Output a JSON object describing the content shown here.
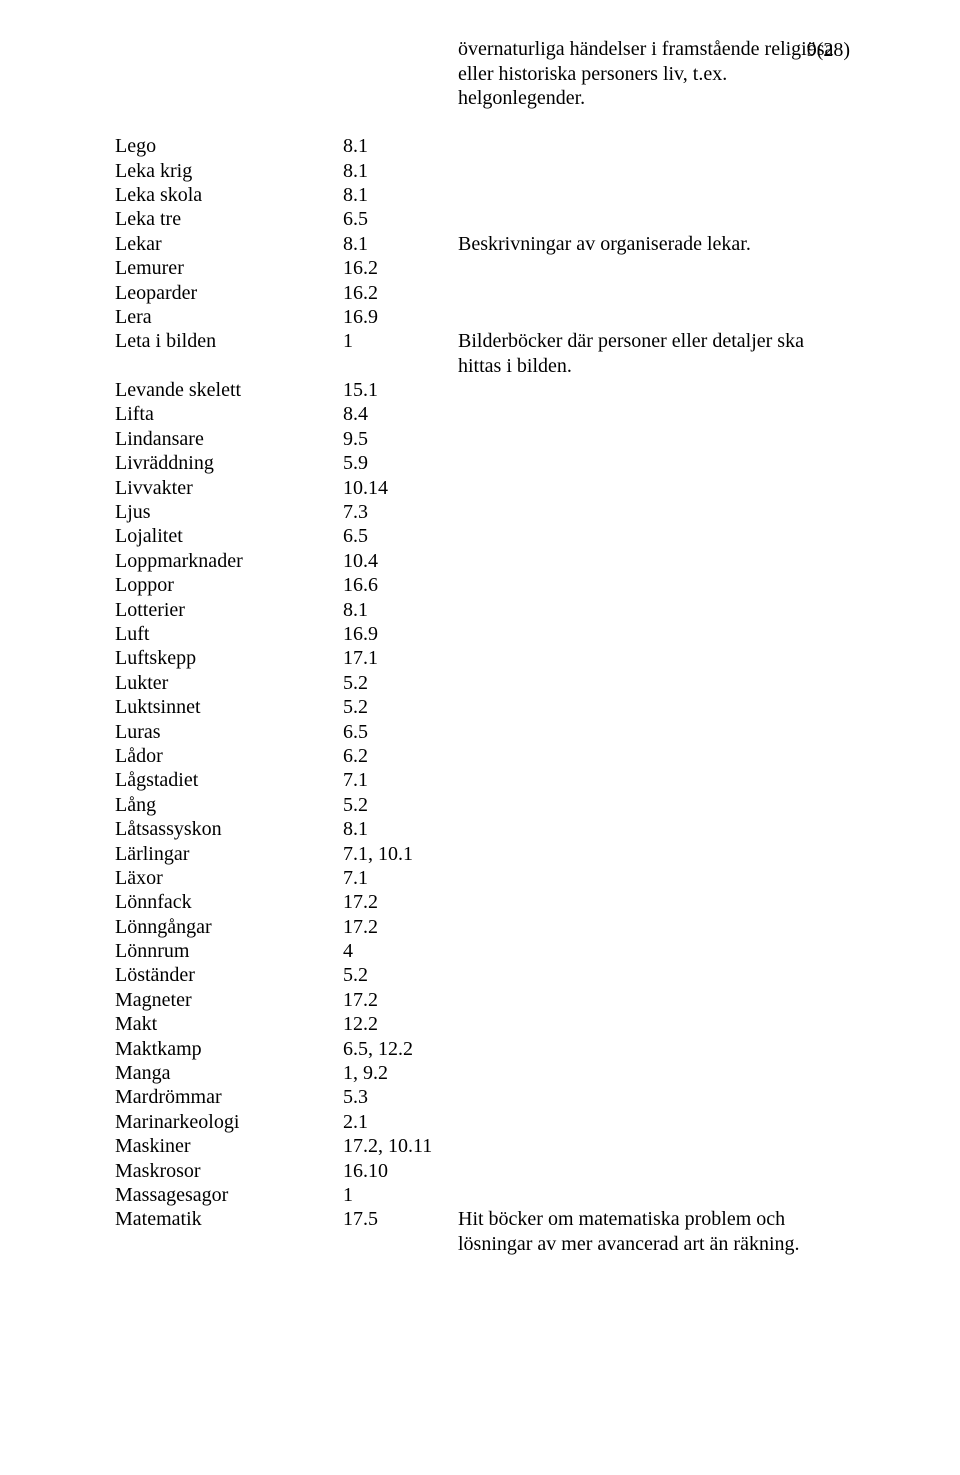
{
  "page_number": "9(28)",
  "first_desc": "övernaturliga händelser i framstående religiösa eller historiska personers liv, t.ex. helgonlegender.",
  "rows": [
    {
      "term": "Lego",
      "code": "8.1",
      "desc": ""
    },
    {
      "term": "Leka krig",
      "code": "8.1",
      "desc": ""
    },
    {
      "term": "Leka skola",
      "code": "8.1",
      "desc": ""
    },
    {
      "term": "Leka tre",
      "code": "6.5",
      "desc": ""
    },
    {
      "term": "Lekar",
      "code": "8.1",
      "desc": "Beskrivningar av organiserade lekar."
    },
    {
      "term": "Lemurer",
      "code": "16.2",
      "desc": ""
    },
    {
      "term": "Leoparder",
      "code": "16.2",
      "desc": ""
    },
    {
      "term": "Lera",
      "code": "16.9",
      "desc": ""
    },
    {
      "term": "Leta i bilden",
      "code": "1",
      "desc": "Bilderböcker där personer eller detaljer ska hittas i bilden."
    },
    {
      "term": "Levande skelett",
      "code": "15.1",
      "desc": ""
    },
    {
      "term": "Lifta",
      "code": "8.4",
      "desc": ""
    },
    {
      "term": "Lindansare",
      "code": "9.5",
      "desc": ""
    },
    {
      "term": "Livräddning",
      "code": "5.9",
      "desc": ""
    },
    {
      "term": "Livvakter",
      "code": "10.14",
      "desc": ""
    },
    {
      "term": "Ljus",
      "code": "7.3",
      "desc": ""
    },
    {
      "term": "Lojalitet",
      "code": "6.5",
      "desc": ""
    },
    {
      "term": "Loppmarknader",
      "code": "10.4",
      "desc": ""
    },
    {
      "term": "Loppor",
      "code": "16.6",
      "desc": ""
    },
    {
      "term": "Lotterier",
      "code": "8.1",
      "desc": ""
    },
    {
      "term": "Luft",
      "code": "16.9",
      "desc": ""
    },
    {
      "term": "Luftskepp",
      "code": "17.1",
      "desc": ""
    },
    {
      "term": "Lukter",
      "code": "5.2",
      "desc": ""
    },
    {
      "term": "Luktsinnet",
      "code": "5.2",
      "desc": ""
    },
    {
      "term": "Luras",
      "code": "6.5",
      "desc": ""
    },
    {
      "term": "Lådor",
      "code": "6.2",
      "desc": ""
    },
    {
      "term": "Lågstadiet",
      "code": "7.1",
      "desc": ""
    },
    {
      "term": "Lång",
      "code": "5.2",
      "desc": ""
    },
    {
      "term": "Låtsassyskon",
      "code": "8.1",
      "desc": ""
    },
    {
      "term": "Lärlingar",
      "code": "7.1, 10.1",
      "desc": ""
    },
    {
      "term": "Läxor",
      "code": "7.1",
      "desc": ""
    },
    {
      "term": "Lönnfack",
      "code": "17.2",
      "desc": ""
    },
    {
      "term": "Lönngångar",
      "code": "17.2",
      "desc": ""
    },
    {
      "term": "Lönnrum",
      "code": "4",
      "desc": ""
    },
    {
      "term": "Löständer",
      "code": "5.2",
      "desc": ""
    },
    {
      "term": "Magneter",
      "code": "17.2",
      "desc": ""
    },
    {
      "term": "Makt",
      "code": "12.2",
      "desc": ""
    },
    {
      "term": "Maktkamp",
      "code": "6.5, 12.2",
      "desc": ""
    },
    {
      "term": "Manga",
      "code": "1, 9.2",
      "desc": ""
    },
    {
      "term": "Mardrömmar",
      "code": "5.3",
      "desc": ""
    },
    {
      "term": "Marinarkeologi",
      "code": "2.1",
      "desc": ""
    },
    {
      "term": "Maskiner",
      "code": "17.2, 10.11",
      "desc": ""
    },
    {
      "term": "Maskrosor",
      "code": "16.10",
      "desc": ""
    },
    {
      "term": "Massagesagor",
      "code": "1",
      "desc": ""
    },
    {
      "term": "Matematik",
      "code": "17.5",
      "desc": "Hit böcker om matematiska problem och lösningar av mer avancerad art än räkning."
    }
  ]
}
